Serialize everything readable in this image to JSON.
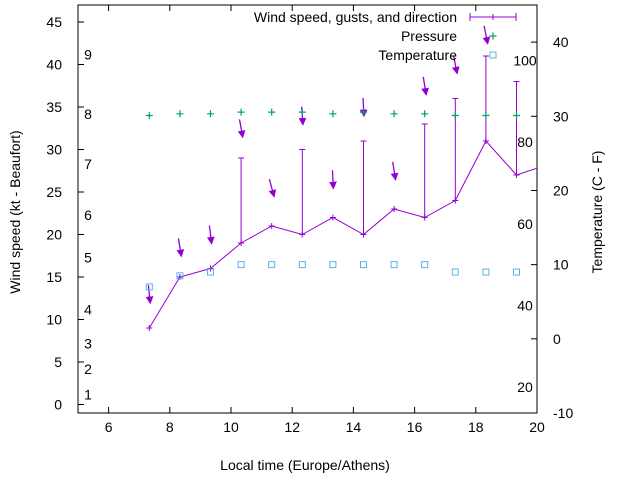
{
  "chart_data": {
    "type": "line",
    "xlabel": "Local time (Europe/Athens)",
    "ylabel": "Wind speed (kt - Beaufort)",
    "y2label": "Temperature (C - F)",
    "xlim": [
      5,
      20
    ],
    "ylim": [
      -1,
      47
    ],
    "y2lim": [
      -10,
      45
    ],
    "x_ticks": [
      "6",
      "8",
      "10",
      "12",
      "14",
      "16",
      "18",
      "20"
    ],
    "y_ticks": [
      "0",
      "5",
      "10",
      "15",
      "20",
      "25",
      "30",
      "35",
      "40",
      "45"
    ],
    "y2_ticks": [
      "-10",
      "0",
      "10",
      "20",
      "30",
      "40"
    ],
    "beaufort_labels": [
      {
        "text": "1",
        "y": 1.2
      },
      {
        "text": "2",
        "y": 4.2
      },
      {
        "text": "3",
        "y": 7.2
      },
      {
        "text": "4",
        "y": 11.2
      },
      {
        "text": "5",
        "y": 17.3
      },
      {
        "text": "6",
        "y": 22.3
      },
      {
        "text": "7",
        "y": 28.3
      },
      {
        "text": "8",
        "y": 34.2
      },
      {
        "text": "9",
        "y": 41.2
      }
    ],
    "fahrenheit_labels": [
      {
        "text": "20",
        "y2": -6.5
      },
      {
        "text": "40",
        "y2": 4.5
      },
      {
        "text": "60",
        "y2": 15.5
      },
      {
        "text": "80",
        "y2": 26.5
      },
      {
        "text": "100",
        "y2": 37.5
      }
    ],
    "grid": false,
    "legend_position": "top-right",
    "series": [
      {
        "name": "Wind speed, gusts, and direction",
        "color": "#9400d3",
        "x": [
          7.33,
          8.33,
          9.33,
          10.33,
          11.33,
          12.33,
          13.33,
          14.33,
          15.33,
          16.33,
          17.33,
          18.33,
          19.33,
          20
        ],
        "values": [
          9,
          15,
          16,
          19,
          21,
          20,
          22,
          20,
          23,
          22,
          24,
          31,
          27,
          27.8
        ],
        "gusts": [
          null,
          null,
          null,
          29,
          null,
          30,
          null,
          31,
          null,
          33,
          36,
          41,
          38,
          null
        ],
        "direction_arrows": [
          {
            "x": 7.33,
            "y": 13,
            "dx": 0.1,
            "dy": -1.0
          },
          {
            "x": 8.33,
            "y": 18.5,
            "dx": 0.16,
            "dy": -1.0
          },
          {
            "x": 9.33,
            "y": 20,
            "dx": 0.12,
            "dy": -1.0
          },
          {
            "x": 10.33,
            "y": 32.5,
            "dx": 0.18,
            "dy": -1.0
          },
          {
            "x": 11.33,
            "y": 25.5,
            "dx": 0.22,
            "dy": -0.8
          },
          {
            "x": 12.33,
            "y": 34,
            "dx": 0.07,
            "dy": -1.0
          },
          {
            "x": 13.33,
            "y": 26.5,
            "dx": 0.05,
            "dy": -1.0
          },
          {
            "x": 14.33,
            "y": 35,
            "dx": 0.05,
            "dy": -1.0
          },
          {
            "x": 15.33,
            "y": 27.5,
            "dx": 0.16,
            "dy": -1.0
          },
          {
            "x": 16.33,
            "y": 37.5,
            "dx": 0.16,
            "dy": -1.0
          },
          {
            "x": 17.33,
            "y": 40,
            "dx": 0.2,
            "dy": -1.0
          },
          {
            "x": 18.33,
            "y": 43.5,
            "dx": 0.2,
            "dy": -1.0
          }
        ]
      },
      {
        "name": "Pressure",
        "color": "#009e73",
        "x": [
          7.33,
          8.33,
          9.33,
          10.33,
          11.33,
          12.33,
          13.33,
          14.33,
          15.33,
          16.33,
          17.33,
          18.33,
          19.33
        ],
        "values": [
          34.0,
          34.2,
          34.2,
          34.4,
          34.4,
          34.4,
          34.2,
          34.4,
          34.2,
          34.2,
          34.0,
          34.0,
          34.0
        ]
      },
      {
        "name": "Temperature",
        "color": "#56b4e9",
        "axis": "y2",
        "x": [
          7.33,
          8.33,
          9.33,
          10.33,
          11.33,
          12.33,
          13.33,
          14.33,
          15.33,
          16.33,
          17.33,
          18.33,
          19.33
        ],
        "values": [
          7,
          8.5,
          9,
          10,
          10,
          10,
          10,
          10,
          10,
          10,
          9,
          9,
          9
        ]
      }
    ]
  }
}
